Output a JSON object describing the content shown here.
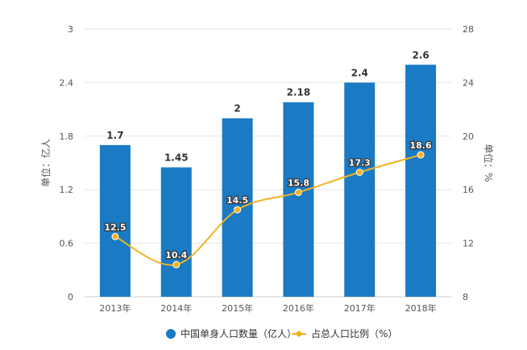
{
  "chart_data": {
    "type": "bar",
    "categories": [
      "2013年",
      "2014年",
      "2015年",
      "2016年",
      "2017年",
      "2018年"
    ],
    "series": [
      {
        "name": "中国单身人口数量（亿人）",
        "type": "bar",
        "axis": "left",
        "color": "#1a7ac4",
        "values": [
          1.7,
          1.45,
          2,
          2.18,
          2.4,
          2.6
        ],
        "labels": [
          "1.7",
          "1.45",
          "2",
          "2.18",
          "2.4",
          "2.6"
        ]
      },
      {
        "name": "占总人口比例（%）",
        "type": "line",
        "axis": "right",
        "color": "#f0b323",
        "values": [
          12.5,
          10.4,
          14.5,
          15.8,
          17.3,
          18.6
        ],
        "labels": [
          "12.5",
          "10.4",
          "14.5",
          "15.8",
          "17.3",
          "18.6"
        ]
      }
    ],
    "ylabel": "单位：亿人",
    "y2label": "单位：%",
    "ylim": [
      0,
      3
    ],
    "y2lim": [
      8,
      28
    ],
    "yticks": [
      "0",
      "0.6",
      "1.2",
      "1.8",
      "2.4",
      "3"
    ],
    "y2ticks": [
      "8",
      "12",
      "16",
      "20",
      "24",
      "28"
    ],
    "grid": true,
    "legend": "bottom"
  }
}
